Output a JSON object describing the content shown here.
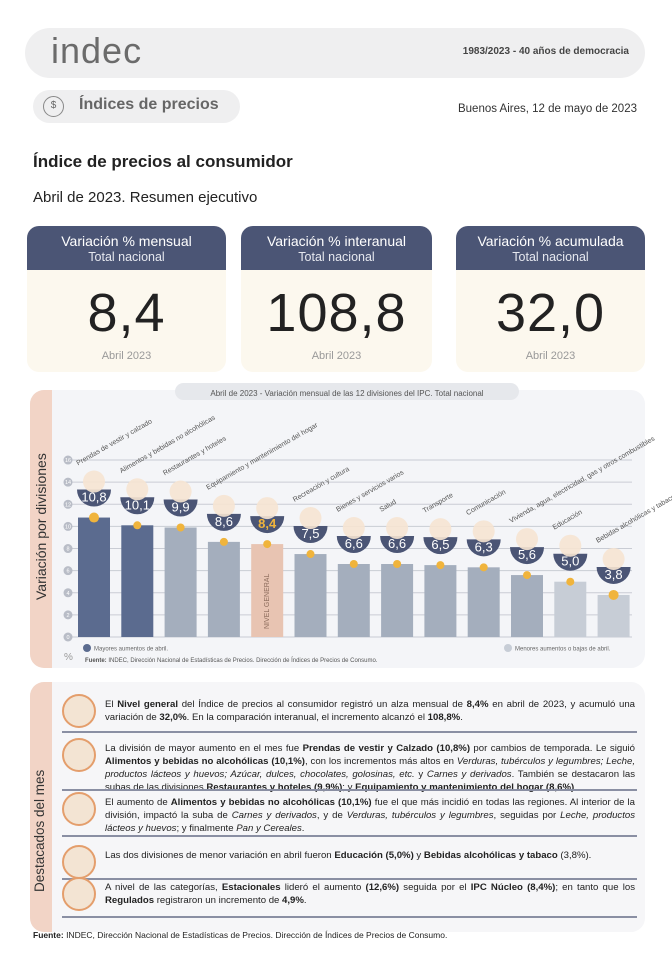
{
  "header": {
    "logo": "indec",
    "tagline": "1983/2023 - 40 años de democracia"
  },
  "section": {
    "label": "Índices de precios",
    "icon": "dollar-seal-icon"
  },
  "date": "Buenos Aires, 12 de mayo de 2023",
  "title": "Índice de precios al consumidor",
  "subtitle": "Abril de 2023. Resumen ejecutivo",
  "cards": [
    {
      "title": "Variación % mensual",
      "sub": "Total nacional",
      "value": "8,4",
      "period": "Abril 2023"
    },
    {
      "title": "Variación % interanual",
      "sub": "Total nacional",
      "value": "108,8",
      "period": "Abril 2023"
    },
    {
      "title": "Variación % acumulada",
      "sub": "Total nacional",
      "value": "32,0",
      "period": "Abril 2023"
    }
  ],
  "colors": {
    "dark": "#4b5575",
    "bar_high": "#5b6b8f",
    "bar_mid": "#a4aebd",
    "bar_general": "#e8c4b2",
    "bar_low": "#c7cdd6",
    "dot": "#f0b43c",
    "band": "#f2d4c6"
  },
  "chart_section_label": "Variación por divisiones",
  "chart_data": {
    "type": "bar",
    "title": "Abril de 2023 - Variación mensual de las 12 divisiones del IPC. Total nacional",
    "ylabel": "%",
    "ylim": [
      0,
      16
    ],
    "yticks": [
      0,
      2,
      4,
      6,
      8,
      10,
      12,
      14,
      16
    ],
    "grid": true,
    "categories": [
      "Prendas de vestir y calzado",
      "Alimentos y bebidas no alcohólicas",
      "Restaurantes y hoteles",
      "Equipamiento y mantenimiento del hogar",
      "NIVEL GENERAL",
      "Recreación y cultura",
      "Bienes y servicios varios",
      "Salud",
      "Transporte",
      "Comunicación",
      "Vivienda, agua, electricidad, gas y otros combustibles",
      "Educación",
      "Bebidas alcohólicas y tabaco"
    ],
    "values": [
      10.8,
      10.1,
      9.9,
      8.6,
      8.4,
      7.5,
      6.6,
      6.6,
      6.5,
      6.3,
      5.6,
      5.0,
      3.8
    ],
    "value_labels": [
      "10,8",
      "10,1",
      "9,9",
      "8,6",
      "8,4",
      "7,5",
      "6,6",
      "6,6",
      "6,5",
      "6,3",
      "5,6",
      "5,0",
      "3,8"
    ],
    "groups": [
      "high",
      "high",
      "mid",
      "mid",
      "general",
      "mid",
      "mid",
      "mid",
      "mid",
      "mid",
      "mid",
      "low",
      "low"
    ],
    "legend": [
      {
        "label": "Mayores aumentos de abril.",
        "group": "high"
      },
      {
        "label": "Menores aumentos o bajas de abril.",
        "group": "low"
      }
    ],
    "source_bold": "Fuente:",
    "source": " INDEC, Dirección Nacional de Estadísticas de Precios. Dirección de Índices de Precios de Consumo."
  },
  "highlights": {
    "label": "Destacados del mes",
    "items": [
      [
        {
          "t": "El "
        },
        {
          "t": "Nivel general",
          "b": 1
        },
        {
          "t": " del Índice de precios al consumidor registró un alza mensual de "
        },
        {
          "t": "8,4%",
          "b": 1
        },
        {
          "t": " en abril de 2023, y acumuló una variación de "
        },
        {
          "t": "32,0%",
          "b": 1
        },
        {
          "t": ". En la comparación interanual, el incremento alcanzó el "
        },
        {
          "t": "108,8%",
          "b": 1
        },
        {
          "t": "."
        }
      ],
      [
        {
          "t": "La división de mayor aumento en el mes fue "
        },
        {
          "t": "Prendas de vestir y Calzado (10,8%)",
          "b": 1
        },
        {
          "t": " por cambios de temporada. Le siguió "
        },
        {
          "t": "Alimentos y bebidas no alcohólicas (10,1%)",
          "b": 1
        },
        {
          "t": ", con los incrementos más altos en "
        },
        {
          "t": "Verduras, tubérculos y legumbres; Leche, productos lácteos y huevos; Azúcar, dulces, chocolates, golosinas, etc.",
          "i": 1
        },
        {
          "t": " y "
        },
        {
          "t": "Carnes y derivados",
          "i": 1
        },
        {
          "t": ". También se destacaron las subas de las divisiones "
        },
        {
          "t": "Restaurantes y hoteles (9,9%)",
          "b": 1
        },
        {
          "t": "; y "
        },
        {
          "t": "Equipamiento y mantenimiento del hogar (8,6%)",
          "b": 1
        },
        {
          "t": "."
        }
      ],
      [
        {
          "t": "El aumento de "
        },
        {
          "t": "Alimentos y bebidas no alcohólicas (10,1%)",
          "b": 1
        },
        {
          "t": " fue el que más incidió en todas las regiones. Al interior de la división, impactó la suba de "
        },
        {
          "t": "Carnes y derivados",
          "i": 1
        },
        {
          "t": ", y de "
        },
        {
          "t": "Verduras, tubérculos y legumbres",
          "i": 1
        },
        {
          "t": ", seguidas por "
        },
        {
          "t": "Leche, productos lácteos y huevos",
          "i": 1
        },
        {
          "t": "; y finalmente "
        },
        {
          "t": "Pan y Cereales",
          "i": 1
        },
        {
          "t": "."
        }
      ],
      [
        {
          "t": "Las dos divisiones de menor variación en abril fueron "
        },
        {
          "t": "Educación (5,0%)",
          "b": 1
        },
        {
          "t": " y "
        },
        {
          "t": "Bebidas alcohólicas y tabaco",
          "b": 1
        },
        {
          "t": " (3,8%)."
        }
      ],
      [
        {
          "t": "A nivel de las categorías, "
        },
        {
          "t": "Estacionales",
          "b": 1
        },
        {
          "t": " lideró el aumento "
        },
        {
          "t": "(12,6%)",
          "b": 1
        },
        {
          "t": " seguida por el "
        },
        {
          "t": "IPC Núcleo (8,4%)",
          "b": 1
        },
        {
          "t": "; en tanto que los "
        },
        {
          "t": "Regulados",
          "b": 1
        },
        {
          "t": " registraron un incremento de "
        },
        {
          "t": "4,9%",
          "b": 1
        },
        {
          "t": "."
        }
      ]
    ],
    "icons": [
      "shopping-basket-icon",
      "tshirt-icon",
      "food-icon",
      "notebook-icon",
      "categories-icon"
    ]
  },
  "footer": {
    "bold": "Fuente:",
    "text": " INDEC, Dirección Nacional de Estadísticas de Precios. Dirección de Índices de Precios de Consumo."
  }
}
